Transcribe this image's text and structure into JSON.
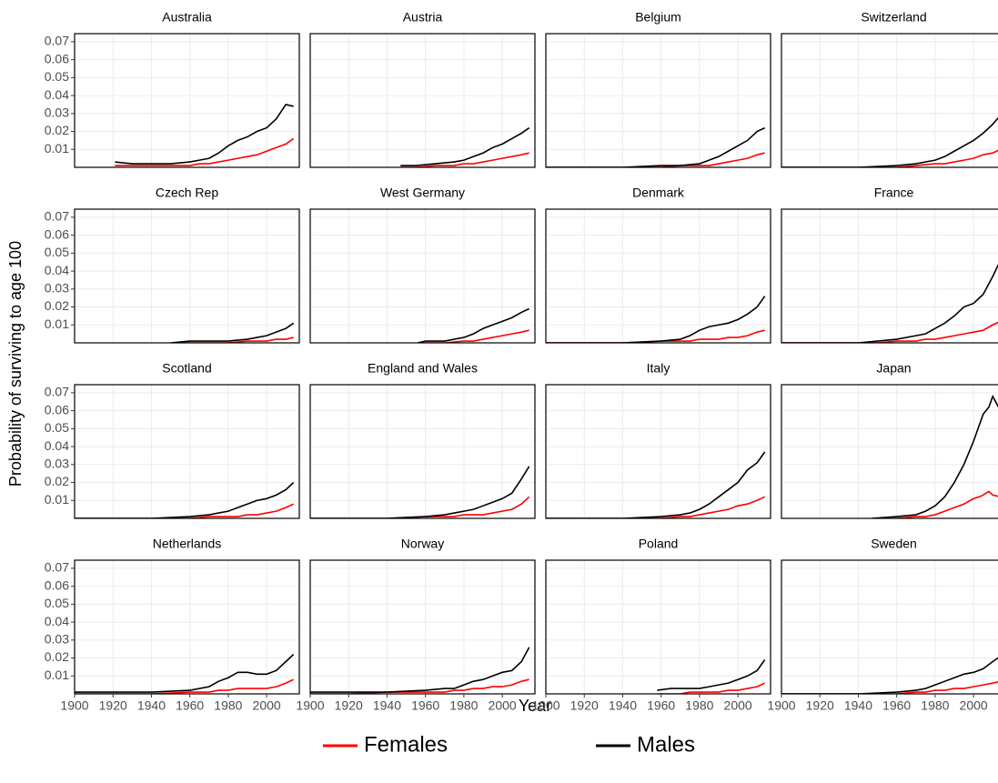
{
  "chart_data": {
    "type": "line",
    "ylabel": "Probability of surviving to age 100",
    "xlabel": "Year",
    "legend": [
      {
        "name": "Females",
        "color": "#ff0000"
      },
      {
        "name": "Males",
        "color": "#000000"
      }
    ],
    "xlim": [
      1900,
      2017
    ],
    "xticks": [
      1900,
      1920,
      1940,
      1960,
      1980,
      2000
    ],
    "ylim": [
      0,
      0.0745
    ],
    "yticks": [
      0.01,
      0.02,
      0.03,
      0.04,
      0.05,
      0.06,
      0.07
    ],
    "grid": true,
    "panels": [
      {
        "title": "Australia",
        "x": [
          1921,
          1930,
          1940,
          1950,
          1960,
          1965,
          1970,
          1975,
          1980,
          1985,
          1990,
          1995,
          2000,
          2005,
          2010,
          2014
        ],
        "series": [
          {
            "values": [
              0.001,
              0.001,
              0.001,
              0.001,
              0.001,
              0.002,
              0.002,
              0.003,
              0.004,
              0.005,
              0.006,
              0.007,
              0.009,
              0.011,
              0.013,
              0.016
            ]
          },
          {
            "values": [
              0.003,
              0.002,
              0.002,
              0.002,
              0.003,
              0.004,
              0.005,
              0.008,
              0.012,
              0.015,
              0.017,
              0.02,
              0.022,
              0.027,
              0.035,
              0.034
            ]
          }
        ]
      },
      {
        "title": "Austria",
        "x": [
          1947,
          1955,
          1965,
          1975,
          1980,
          1985,
          1990,
          1995,
          2000,
          2005,
          2010,
          2014
        ],
        "series": [
          {
            "values": [
              0,
              0,
              0.001,
              0.001,
              0.002,
              0.002,
              0.003,
              0.004,
              0.005,
              0.006,
              0.007,
              0.008
            ]
          },
          {
            "values": [
              0.001,
              0.001,
              0.002,
              0.003,
              0.004,
              0.006,
              0.008,
              0.011,
              0.013,
              0.016,
              0.019,
              0.022
            ]
          }
        ]
      },
      {
        "title": "Belgium",
        "x": [
          1900,
          1920,
          1940,
          1960,
          1970,
          1980,
          1985,
          1990,
          1995,
          2000,
          2005,
          2010,
          2014
        ],
        "series": [
          {
            "values": [
              0,
              0,
              0,
              0,
              0.001,
              0.001,
              0.001,
              0.002,
              0.003,
              0.004,
              0.005,
              0.007,
              0.008
            ]
          },
          {
            "values": [
              0,
              0,
              0,
              0.001,
              0.001,
              0.002,
              0.004,
              0.006,
              0.009,
              0.012,
              0.015,
              0.02,
              0.022
            ]
          }
        ]
      },
      {
        "title": "Switzerland",
        "x": [
          1900,
          1920,
          1940,
          1960,
          1970,
          1980,
          1985,
          1990,
          1995,
          2000,
          2005,
          2010,
          2014
        ],
        "series": [
          {
            "values": [
              0,
              0,
              0,
              0,
              0.001,
              0.002,
              0.002,
              0.003,
              0.004,
              0.005,
              0.007,
              0.008,
              0.01
            ]
          },
          {
            "values": [
              0,
              0,
              0,
              0.001,
              0.002,
              0.004,
              0.006,
              0.009,
              0.012,
              0.015,
              0.019,
              0.024,
              0.029
            ]
          }
        ]
      },
      {
        "title": "Czech Rep",
        "x": [
          1950,
          1960,
          1970,
          1980,
          1990,
          1995,
          2000,
          2005,
          2010,
          2014
        ],
        "series": [
          {
            "values": [
              0,
              0,
              0,
              0,
              0.001,
              0.001,
              0.001,
              0.002,
              0.002,
              0.003
            ]
          },
          {
            "values": [
              0,
              0.001,
              0.001,
              0.001,
              0.002,
              0.003,
              0.004,
              0.006,
              0.008,
              0.011
            ]
          }
        ]
      },
      {
        "title": "West Germany",
        "x": [
          1956,
          1960,
          1970,
          1980,
          1985,
          1990,
          1995,
          2000,
          2005,
          2010,
          2014
        ],
        "series": [
          {
            "values": [
              0,
              0,
              0,
              0.001,
              0.001,
              0.002,
              0.003,
              0.004,
              0.005,
              0.006,
              0.007
            ]
          },
          {
            "values": [
              0,
              0.001,
              0.001,
              0.003,
              0.005,
              0.008,
              0.01,
              0.012,
              0.014,
              0.017,
              0.019
            ]
          }
        ]
      },
      {
        "title": "Denmark",
        "x": [
          1900,
          1920,
          1940,
          1960,
          1970,
          1975,
          1980,
          1985,
          1990,
          1995,
          2000,
          2005,
          2010,
          2014
        ],
        "series": [
          {
            "values": [
              0,
              0,
              0,
              0.001,
              0.001,
              0.001,
              0.002,
              0.002,
              0.002,
              0.003,
              0.003,
              0.004,
              0.006,
              0.007
            ]
          },
          {
            "values": [
              0,
              0,
              0,
              0.001,
              0.002,
              0.004,
              0.007,
              0.009,
              0.01,
              0.011,
              0.013,
              0.016,
              0.02,
              0.026
            ]
          }
        ]
      },
      {
        "title": "France",
        "x": [
          1900,
          1920,
          1940,
          1950,
          1960,
          1970,
          1975,
          1980,
          1985,
          1990,
          1995,
          2000,
          2005,
          2010,
          2014
        ],
        "series": [
          {
            "values": [
              0,
              0,
              0,
              0,
              0.001,
              0.001,
              0.002,
              0.002,
              0.003,
              0.004,
              0.005,
              0.006,
              0.007,
              0.01,
              0.012
            ]
          },
          {
            "values": [
              0,
              0,
              0,
              0.001,
              0.002,
              0.004,
              0.005,
              0.008,
              0.011,
              0.015,
              0.02,
              0.022,
              0.027,
              0.037,
              0.046
            ]
          }
        ]
      },
      {
        "title": "Scotland",
        "x": [
          1900,
          1920,
          1940,
          1960,
          1970,
          1975,
          1980,
          1985,
          1990,
          1995,
          2000,
          2005,
          2010,
          2014
        ],
        "series": [
          {
            "values": [
              0,
              0,
              0,
              0,
              0.001,
              0.001,
              0.001,
              0.001,
              0.002,
              0.002,
              0.003,
              0.004,
              0.006,
              0.008
            ]
          },
          {
            "values": [
              0,
              0,
              0,
              0.001,
              0.002,
              0.003,
              0.004,
              0.006,
              0.008,
              0.01,
              0.011,
              0.013,
              0.016,
              0.02
            ]
          }
        ]
      },
      {
        "title": "England and Wales",
        "x": [
          1900,
          1920,
          1940,
          1960,
          1970,
          1975,
          1980,
          1985,
          1990,
          1995,
          2000,
          2005,
          2010,
          2014
        ],
        "series": [
          {
            "values": [
              0,
              0,
              0,
              0.001,
              0.001,
              0.001,
              0.002,
              0.002,
              0.002,
              0.003,
              0.004,
              0.005,
              0.008,
              0.012
            ]
          },
          {
            "values": [
              0,
              0,
              0,
              0.001,
              0.002,
              0.003,
              0.004,
              0.005,
              0.007,
              0.009,
              0.011,
              0.014,
              0.022,
              0.029
            ]
          }
        ]
      },
      {
        "title": "Italy",
        "x": [
          1900,
          1920,
          1940,
          1960,
          1970,
          1975,
          1980,
          1985,
          1990,
          1995,
          2000,
          2005,
          2010,
          2014
        ],
        "series": [
          {
            "values": [
              0,
              0,
              0,
              0,
              0.001,
              0.001,
              0.002,
              0.003,
              0.004,
              0.005,
              0.007,
              0.008,
              0.01,
              0.012
            ]
          },
          {
            "values": [
              0,
              0,
              0,
              0.001,
              0.002,
              0.003,
              0.005,
              0.008,
              0.012,
              0.016,
              0.02,
              0.027,
              0.031,
              0.037
            ]
          }
        ]
      },
      {
        "title": "Japan",
        "x": [
          1947,
          1960,
          1970,
          1975,
          1980,
          1985,
          1990,
          1995,
          2000,
          2003,
          2005,
          2008,
          2010,
          2014
        ],
        "series": [
          {
            "values": [
              0,
              0,
              0.001,
              0.001,
              0.002,
              0.004,
              0.006,
              0.008,
              0.011,
              0.012,
              0.013,
              0.015,
              0.013,
              0.012
            ]
          },
          {
            "values": [
              0,
              0.001,
              0.002,
              0.004,
              0.007,
              0.012,
              0.02,
              0.03,
              0.043,
              0.052,
              0.058,
              0.062,
              0.068,
              0.06
            ]
          }
        ]
      },
      {
        "title": "Netherlands",
        "x": [
          1900,
          1920,
          1940,
          1960,
          1970,
          1975,
          1980,
          1985,
          1990,
          1995,
          2000,
          2005,
          2010,
          2014
        ],
        "series": [
          {
            "values": [
              0,
              0,
              0,
              0.001,
              0.001,
              0.002,
              0.002,
              0.003,
              0.003,
              0.003,
              0.003,
              0.004,
              0.006,
              0.008
            ]
          },
          {
            "values": [
              0.001,
              0.001,
              0.001,
              0.002,
              0.004,
              0.007,
              0.009,
              0.012,
              0.012,
              0.011,
              0.011,
              0.013,
              0.018,
              0.022
            ]
          }
        ]
      },
      {
        "title": "Norway",
        "x": [
          1900,
          1920,
          1940,
          1960,
          1970,
          1975,
          1980,
          1985,
          1990,
          1995,
          2000,
          2005,
          2010,
          2014
        ],
        "series": [
          {
            "values": [
              0,
              0,
              0.001,
              0.001,
              0.001,
              0.002,
              0.002,
              0.003,
              0.003,
              0.004,
              0.004,
              0.005,
              0.007,
              0.008
            ]
          },
          {
            "values": [
              0.001,
              0.001,
              0.001,
              0.002,
              0.003,
              0.003,
              0.005,
              0.007,
              0.008,
              0.01,
              0.012,
              0.013,
              0.018,
              0.026
            ]
          }
        ]
      },
      {
        "title": "Poland",
        "x": [
          1958,
          1965,
          1970,
          1975,
          1980,
          1985,
          1990,
          1995,
          2000,
          2005,
          2010,
          2014
        ],
        "series": [
          {
            "values": [
              0,
              0,
              0,
              0.001,
              0.001,
              0.001,
              0.001,
              0.002,
              0.002,
              0.003,
              0.004,
              0.006
            ]
          },
          {
            "values": [
              0.002,
              0.003,
              0.003,
              0.003,
              0.003,
              0.004,
              0.005,
              0.006,
              0.008,
              0.01,
              0.013,
              0.019
            ]
          }
        ]
      },
      {
        "title": "Sweden",
        "x": [
          1900,
          1920,
          1940,
          1960,
          1970,
          1975,
          1980,
          1985,
          1990,
          1995,
          2000,
          2005,
          2010,
          2014
        ],
        "series": [
          {
            "values": [
              0,
              0,
              0,
              0,
              0.001,
              0.001,
              0.002,
              0.002,
              0.003,
              0.003,
              0.004,
              0.005,
              0.006,
              0.007
            ]
          },
          {
            "values": [
              0,
              0,
              0,
              0.001,
              0.002,
              0.003,
              0.005,
              0.007,
              0.009,
              0.011,
              0.012,
              0.014,
              0.018,
              0.021
            ]
          }
        ]
      }
    ]
  }
}
